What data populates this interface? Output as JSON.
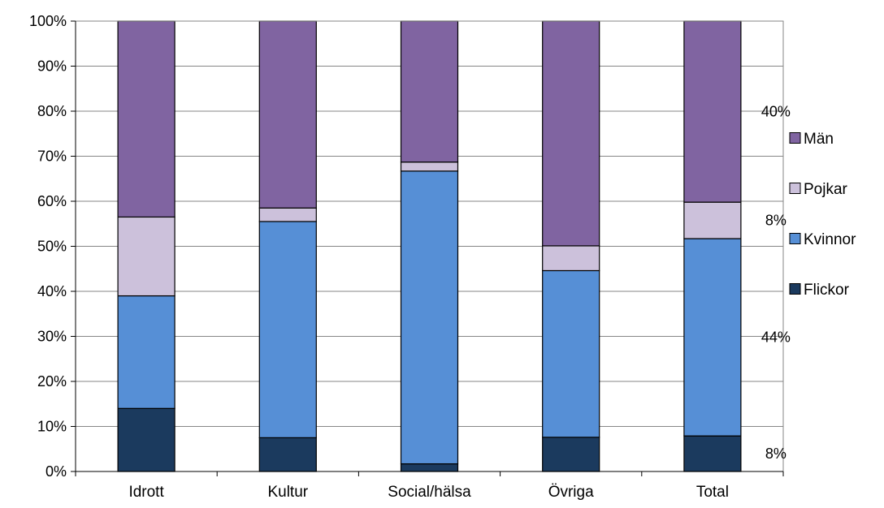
{
  "chart_data": {
    "type": "bar",
    "stacked": true,
    "percent": true,
    "categories": [
      "Idrott",
      "Kultur",
      "Social/hälsa",
      "Övriga",
      "Total"
    ],
    "series": [
      {
        "name": "Flickor",
        "color": "#1b3a5e",
        "values": [
          14,
          7.5,
          1.7,
          7.6,
          7.9
        ]
      },
      {
        "name": "Kvinnor",
        "color": "#568fd6",
        "values": [
          25,
          48,
          65,
          37,
          43.8
        ]
      },
      {
        "name": "Pojkar",
        "color": "#ccc1db",
        "values": [
          17.5,
          3,
          2,
          5.5,
          8.1
        ]
      },
      {
        "name": "Män",
        "color": "#8064a1",
        "values": [
          43.5,
          41.5,
          31.3,
          49.9,
          40.2
        ]
      }
    ],
    "y_ticks": [
      "0%",
      "10%",
      "20%",
      "30%",
      "40%",
      "50%",
      "60%",
      "70%",
      "80%",
      "90%",
      "100%"
    ],
    "ylim": [
      0,
      100
    ],
    "grid": true,
    "legend_position": "right",
    "legend_order": [
      "Män",
      "Pojkar",
      "Kvinnor",
      "Flickor"
    ],
    "data_labels": [
      {
        "category": "Total",
        "series": "Flickor",
        "text": "8%"
      },
      {
        "category": "Total",
        "series": "Kvinnor",
        "text": "44%"
      },
      {
        "category": "Total",
        "series": "Pojkar",
        "text": "8%"
      },
      {
        "category": "Total",
        "series": "Män",
        "text": "40%"
      }
    ]
  }
}
